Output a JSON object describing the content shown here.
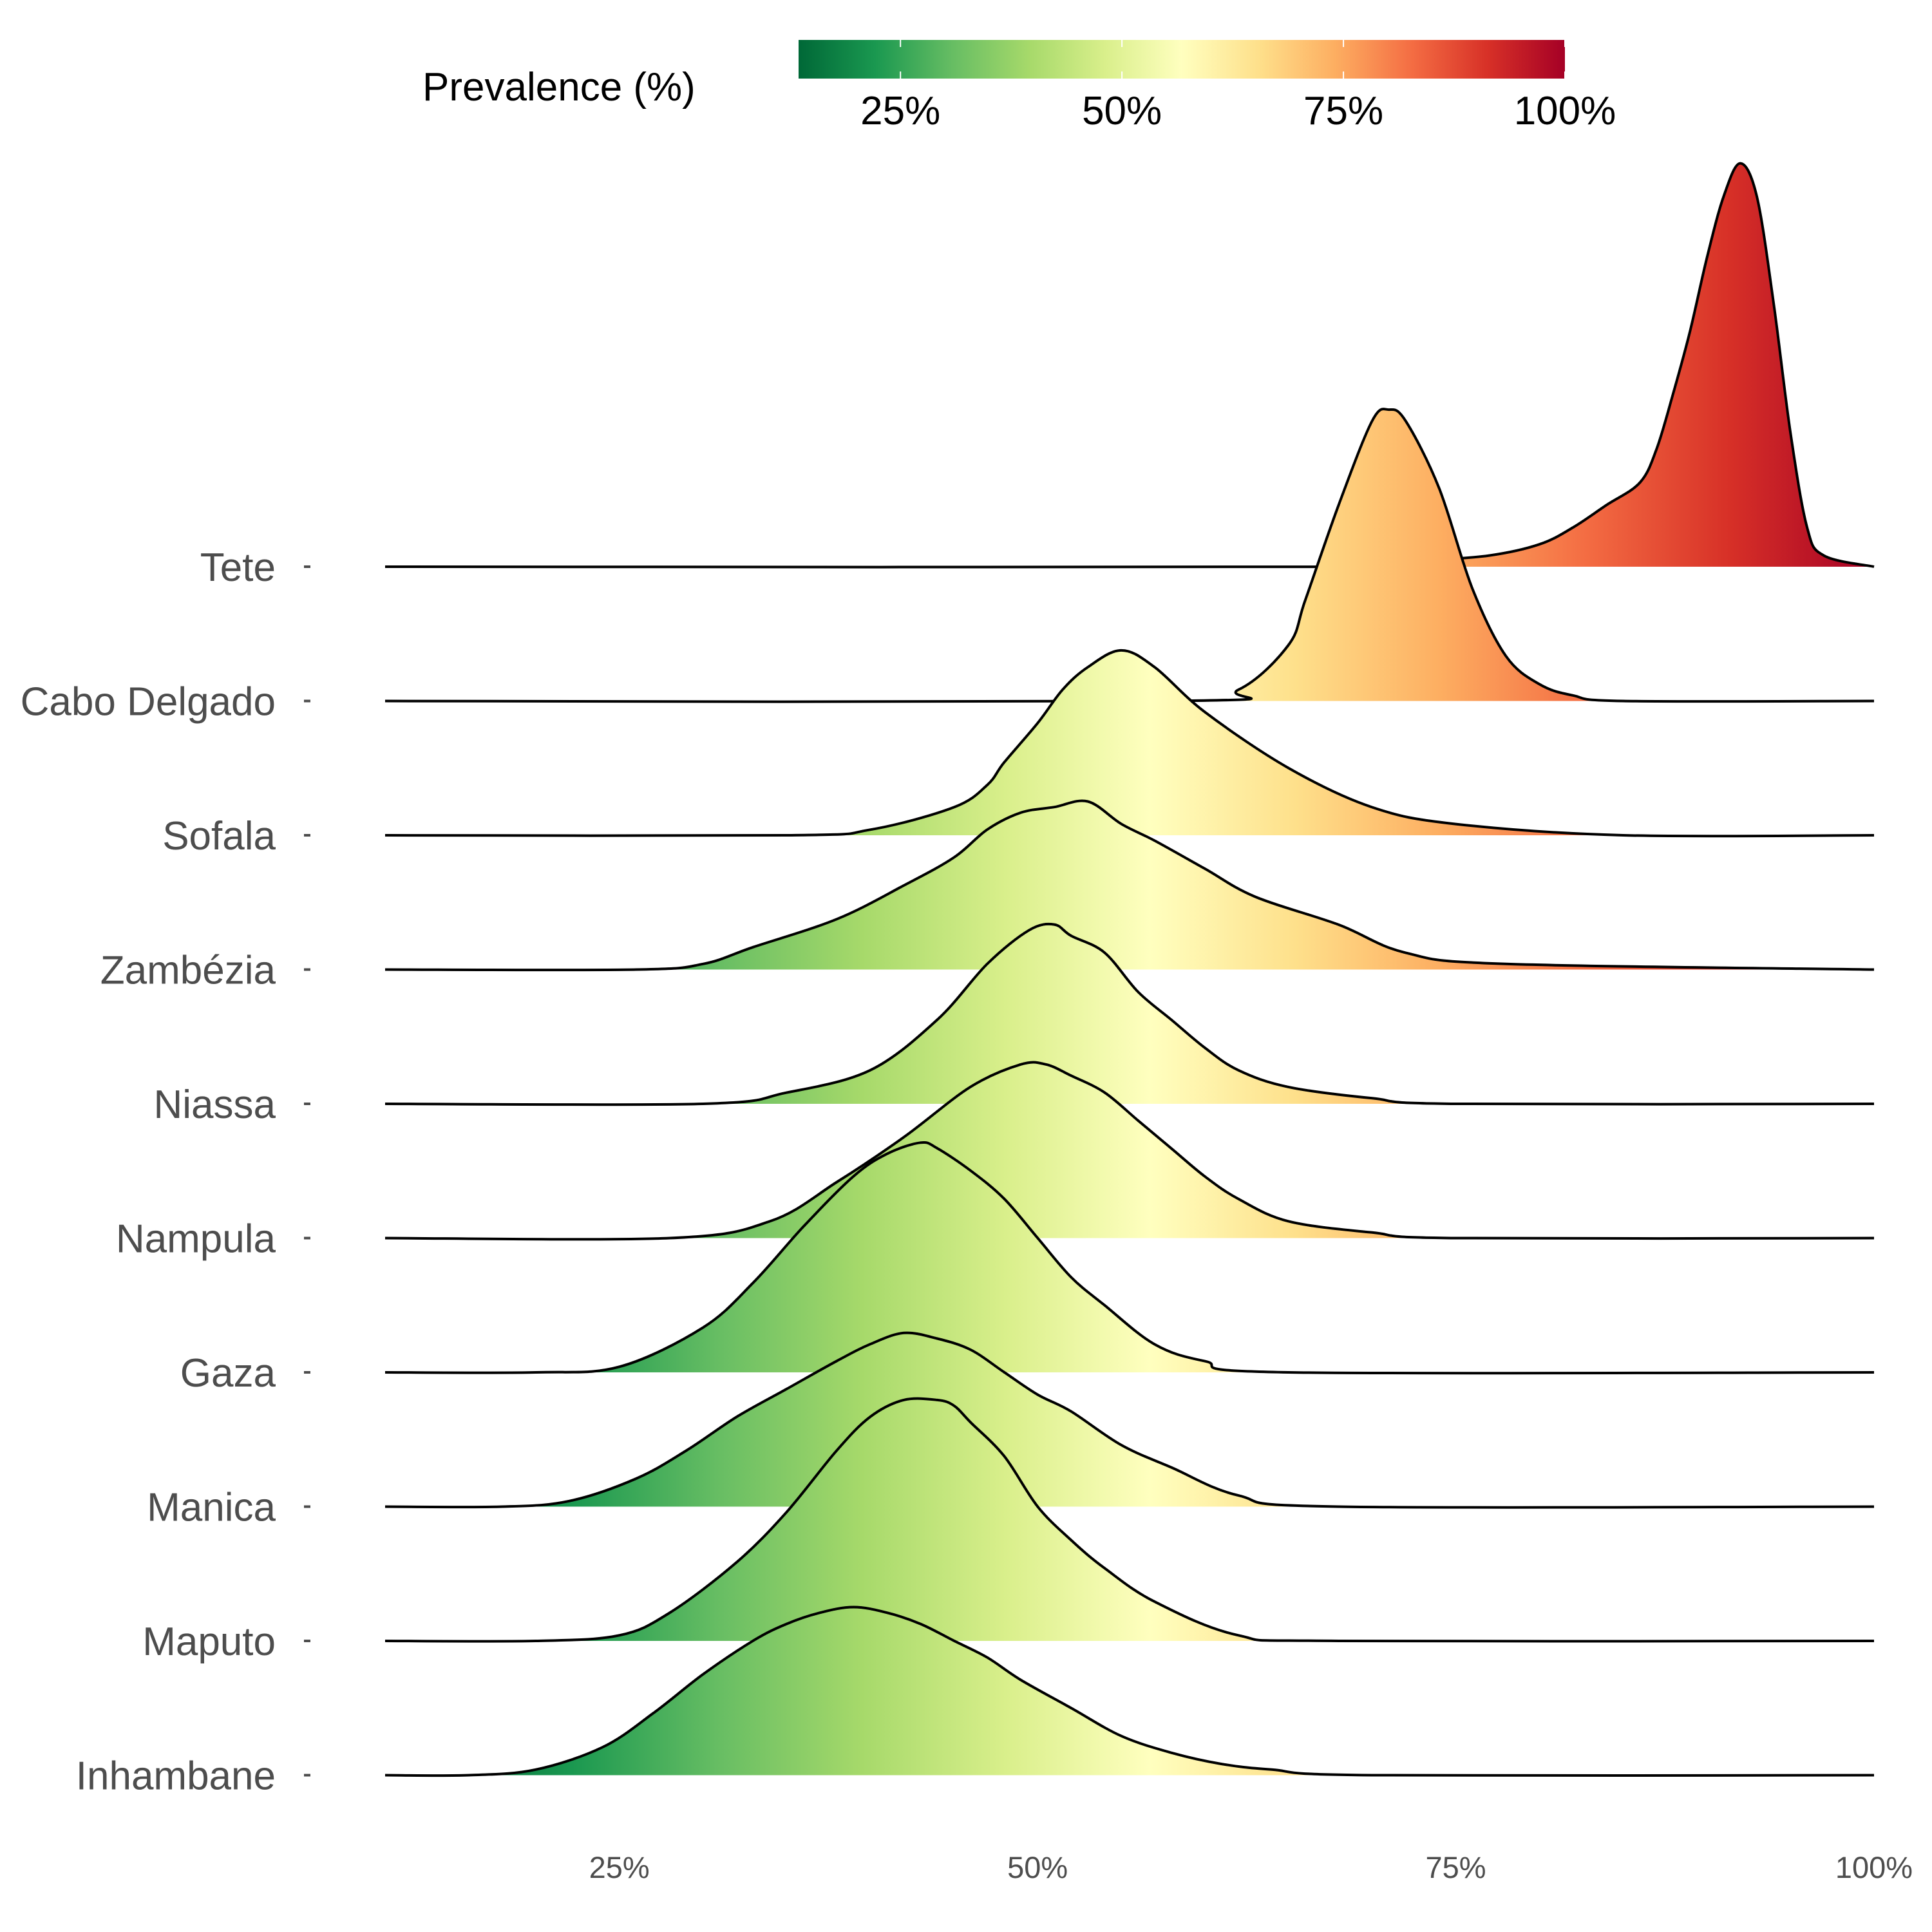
{
  "chart_data": {
    "type": "ridgeline",
    "title": "",
    "xlabel": "",
    "ylabel": "",
    "x_unit": "%",
    "xlim": [
      11,
      100
    ],
    "x_ticks": [
      25,
      50,
      75,
      100
    ],
    "x_tick_labels": [
      "25%",
      "50%",
      "75%",
      "100%"
    ],
    "legend": {
      "title": "Prevalence (%)",
      "position": "top",
      "range": [
        13.5,
        100
      ],
      "ticks": [
        25,
        50,
        75,
        100
      ],
      "tick_labels": [
        "25%",
        "50%",
        "75%",
        "100%"
      ],
      "palette": [
        "#006837",
        "#1a9850",
        "#66bd63",
        "#a6d96a",
        "#d9ef8b",
        "#ffffbf",
        "#fee08b",
        "#fdae61",
        "#f46d43",
        "#d73027",
        "#a50026"
      ]
    },
    "categories": [
      "Tete",
      "Cabo Delgado",
      "Sofala",
      "Zambézia",
      "Niassa",
      "Nampula",
      "Gaza",
      "Manica",
      "Maputo",
      "Inhambane"
    ],
    "series": [
      {
        "name": "Tete",
        "x": [
          11,
          70,
          73,
          77,
          80,
          82,
          84,
          86,
          87,
          88,
          89,
          90,
          91,
          92,
          93,
          94,
          95,
          96,
          97,
          100
        ],
        "density": [
          0,
          0,
          0.01,
          0.02,
          0.04,
          0.07,
          0.11,
          0.15,
          0.21,
          0.31,
          0.42,
          0.55,
          0.66,
          0.72,
          0.66,
          0.47,
          0.24,
          0.07,
          0.02,
          0
        ]
      },
      {
        "name": "Cabo Delgado",
        "x": [
          11,
          58,
          62,
          65,
          66,
          68,
          70,
          71,
          72,
          74,
          76,
          78,
          80,
          82,
          85,
          100
        ],
        "density": [
          0,
          0,
          0.02,
          0.1,
          0.18,
          0.35,
          0.5,
          0.52,
          0.5,
          0.38,
          0.2,
          0.08,
          0.03,
          0.01,
          0,
          0
        ]
      },
      {
        "name": "Sofala",
        "x": [
          11,
          35,
          40,
          45,
          47,
          48,
          50,
          51.5,
          53,
          55,
          57,
          60,
          65,
          70,
          75,
          85,
          100
        ],
        "density": [
          0,
          0,
          0.01,
          0.05,
          0.09,
          0.13,
          0.2,
          0.26,
          0.3,
          0.33,
          0.3,
          0.22,
          0.12,
          0.05,
          0.02,
          0,
          0
        ]
      },
      {
        "name": "Zambézia",
        "x": [
          11,
          26,
          30,
          33,
          38,
          42,
          45,
          47,
          49,
          51,
          53,
          55,
          57,
          60,
          63,
          68,
          72,
          78,
          100
        ],
        "density": [
          0,
          0,
          0.01,
          0.04,
          0.09,
          0.15,
          0.2,
          0.25,
          0.28,
          0.29,
          0.3,
          0.26,
          0.23,
          0.18,
          0.13,
          0.08,
          0.03,
          0.01,
          0
        ]
      },
      {
        "name": "Niassa",
        "x": [
          11,
          30,
          35,
          40,
          44,
          47,
          49.5,
          51,
          52,
          54,
          56,
          58,
          60,
          62,
          65,
          70,
          75,
          100
        ],
        "density": [
          0,
          0,
          0.02,
          0.06,
          0.15,
          0.25,
          0.31,
          0.32,
          0.3,
          0.27,
          0.2,
          0.15,
          0.1,
          0.06,
          0.03,
          0.01,
          0,
          0
        ]
      },
      {
        "name": "Nampula",
        "x": [
          11,
          28,
          34,
          38,
          42,
          46,
          49,
          50.5,
          52,
          54,
          56,
          58,
          60,
          62,
          65,
          70,
          75,
          100
        ],
        "density": [
          0,
          0,
          0.03,
          0.1,
          0.18,
          0.27,
          0.31,
          0.31,
          0.29,
          0.26,
          0.21,
          0.16,
          0.11,
          0.07,
          0.03,
          0.01,
          0,
          0
        ]
      },
      {
        "name": "Gaza",
        "x": [
          11,
          20,
          25,
          30,
          33,
          36,
          39,
          41,
          43,
          44,
          46,
          48,
          50,
          52,
          54,
          57,
          60,
          65,
          100
        ],
        "density": [
          0,
          0,
          0.01,
          0.08,
          0.16,
          0.26,
          0.35,
          0.39,
          0.41,
          0.4,
          0.36,
          0.31,
          0.24,
          0.17,
          0.12,
          0.05,
          0.02,
          0,
          0
        ]
      },
      {
        "name": "Manica",
        "x": [
          11,
          18,
          22,
          26,
          29,
          32,
          35,
          38,
          40,
          42,
          44,
          46,
          48,
          50,
          52,
          55,
          58,
          62,
          68,
          100
        ],
        "density": [
          0,
          0,
          0.01,
          0.05,
          0.1,
          0.16,
          0.21,
          0.26,
          0.29,
          0.31,
          0.3,
          0.28,
          0.24,
          0.2,
          0.17,
          0.11,
          0.07,
          0.02,
          0,
          0
        ]
      },
      {
        "name": "Maputo",
        "x": [
          11,
          20,
          25,
          28,
          32,
          35,
          38,
          40,
          42,
          44,
          45,
          46,
          48,
          50,
          52,
          54,
          57,
          62,
          68,
          100
        ],
        "density": [
          0,
          0,
          0.01,
          0.05,
          0.14,
          0.23,
          0.34,
          0.4,
          0.43,
          0.43,
          0.42,
          0.39,
          0.33,
          0.24,
          0.18,
          0.13,
          0.07,
          0.01,
          0,
          0
        ]
      },
      {
        "name": "Inhambane",
        "x": [
          11,
          16,
          20,
          24,
          27,
          30,
          33,
          35,
          37,
          39,
          41,
          43,
          45,
          47,
          49,
          52,
          55,
          58,
          61,
          64,
          70,
          100
        ],
        "density": [
          0,
          0,
          0.01,
          0.05,
          0.11,
          0.18,
          0.24,
          0.27,
          0.29,
          0.3,
          0.29,
          0.27,
          0.24,
          0.21,
          0.17,
          0.12,
          0.07,
          0.04,
          0.02,
          0.01,
          0,
          0
        ]
      }
    ]
  }
}
